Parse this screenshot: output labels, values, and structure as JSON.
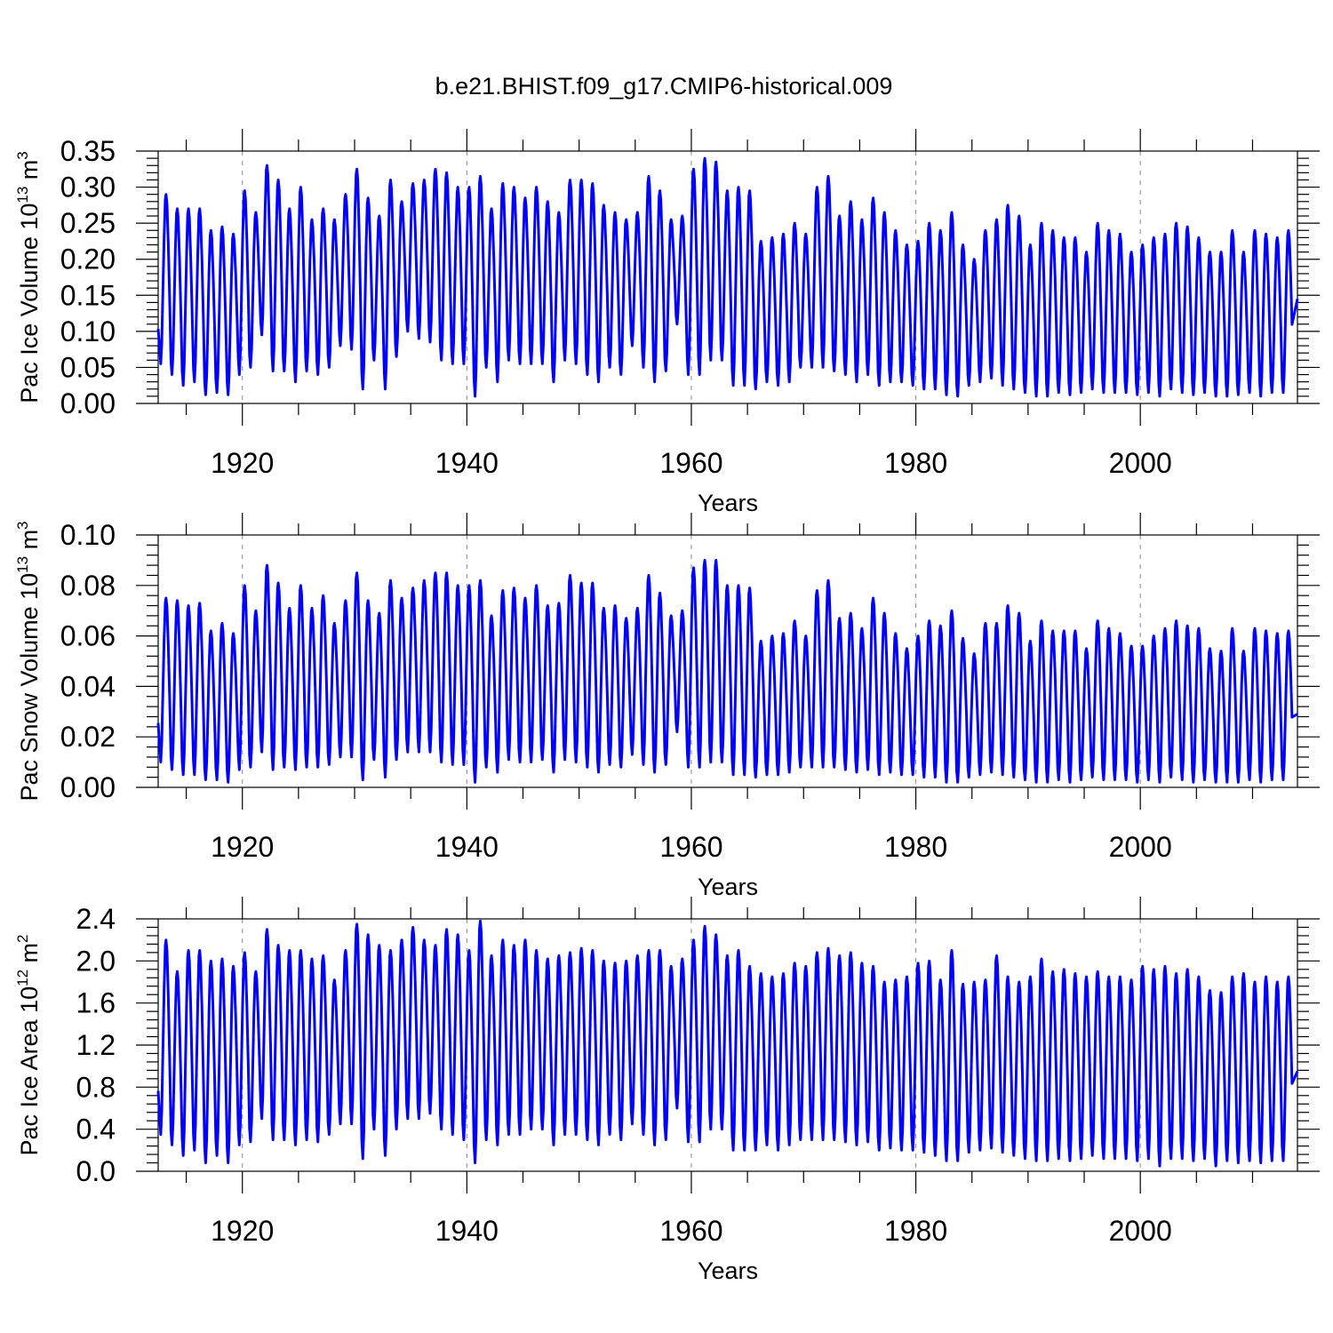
{
  "figure": {
    "title": "b.e21.BHIST.f09_g17.CMIP6-historical.009"
  },
  "colors": {
    "series": "#0000ff",
    "axis": "#000000",
    "grid": "#888888",
    "background": "#ffffff"
  },
  "chart_data": [
    {
      "type": "line",
      "name": "pac-ice-volume",
      "ylabel": {
        "prefix": "Pac Ice Volume 10",
        "exp": "13",
        "unit": " m",
        "unit_exp": "3"
      },
      "xlabel": "Years",
      "xlim": [
        1912.5,
        2014.0
      ],
      "ylim": [
        0.0,
        0.35
      ],
      "yticks": [
        0.0,
        0.05,
        0.1,
        0.15,
        0.2,
        0.25,
        0.3,
        0.35
      ],
      "ytick_labels": [
        "0.00",
        "0.05",
        "0.10",
        "0.15",
        "0.20",
        "0.25",
        "0.30",
        "0.35"
      ],
      "xticks": [
        1920,
        1940,
        1960,
        1980,
        2000
      ],
      "xtick_labels": [
        "1920",
        "1940",
        "1960",
        "1980",
        "2000"
      ],
      "grid": "vertical dashed at major x ticks",
      "start": 1912.5,
      "annual_max": [
        0.29,
        0.27,
        0.27,
        0.27,
        0.24,
        0.245,
        0.235,
        0.295,
        0.265,
        0.33,
        0.31,
        0.27,
        0.3,
        0.255,
        0.27,
        0.255,
        0.29,
        0.325,
        0.285,
        0.26,
        0.31,
        0.28,
        0.305,
        0.31,
        0.325,
        0.32,
        0.3,
        0.3,
        0.315,
        0.27,
        0.305,
        0.3,
        0.285,
        0.3,
        0.28,
        0.265,
        0.31,
        0.31,
        0.305,
        0.275,
        0.265,
        0.255,
        0.265,
        0.315,
        0.295,
        0.255,
        0.26,
        0.325,
        0.34,
        0.335,
        0.295,
        0.3,
        0.295,
        0.225,
        0.23,
        0.235,
        0.25,
        0.235,
        0.3,
        0.315,
        0.26,
        0.28,
        0.255,
        0.285,
        0.265,
        0.24,
        0.22,
        0.225,
        0.25,
        0.24,
        0.265,
        0.22,
        0.2,
        0.24,
        0.255,
        0.275,
        0.26,
        0.22,
        0.25,
        0.24,
        0.23,
        0.23,
        0.21,
        0.25,
        0.24,
        0.235,
        0.21,
        0.22,
        0.23,
        0.235,
        0.25,
        0.245,
        0.23,
        0.21,
        0.21,
        0.24,
        0.21,
        0.24,
        0.235,
        0.23,
        0.24
      ],
      "annual_min": [
        0.055,
        0.04,
        0.025,
        0.03,
        0.012,
        0.015,
        0.012,
        0.04,
        0.05,
        0.095,
        0.045,
        0.045,
        0.03,
        0.045,
        0.04,
        0.05,
        0.08,
        0.075,
        0.02,
        0.06,
        0.02,
        0.065,
        0.1,
        0.09,
        0.085,
        0.06,
        0.055,
        0.055,
        0.01,
        0.05,
        0.03,
        0.06,
        0.055,
        0.055,
        0.055,
        0.03,
        0.06,
        0.055,
        0.04,
        0.03,
        0.05,
        0.04,
        0.08,
        0.05,
        0.03,
        0.045,
        0.11,
        0.04,
        0.04,
        0.06,
        0.06,
        0.025,
        0.025,
        0.02,
        0.03,
        0.025,
        0.03,
        0.05,
        0.05,
        0.05,
        0.045,
        0.04,
        0.03,
        0.04,
        0.025,
        0.03,
        0.03,
        0.025,
        0.02,
        0.02,
        0.012,
        0.01,
        0.025,
        0.03,
        0.035,
        0.025,
        0.02,
        0.015,
        0.01,
        0.01,
        0.015,
        0.012,
        0.015,
        0.02,
        0.015,
        0.015,
        0.015,
        0.012,
        0.015,
        0.01,
        0.02,
        0.015,
        0.012,
        0.015,
        0.01,
        0.01,
        0.012,
        0.015,
        0.01,
        0.015,
        0.015
      ],
      "end_value": 0.145
    },
    {
      "type": "line",
      "name": "pac-snow-volume",
      "ylabel": {
        "prefix": "Pac Snow Volume 10",
        "exp": "13",
        "unit": " m",
        "unit_exp": "3"
      },
      "xlabel": "Years",
      "xlim": [
        1912.5,
        2014.0
      ],
      "ylim": [
        0.0,
        0.1
      ],
      "yticks": [
        0.0,
        0.02,
        0.04,
        0.06,
        0.08,
        0.1
      ],
      "ytick_labels": [
        "0.00",
        "0.02",
        "0.04",
        "0.06",
        "0.08",
        "0.10"
      ],
      "xticks": [
        1920,
        1940,
        1960,
        1980,
        2000
      ],
      "xtick_labels": [
        "1920",
        "1940",
        "1960",
        "1980",
        "2000"
      ],
      "grid": "vertical dashed at major x ticks",
      "start": 1912.5,
      "annual_max": [
        0.075,
        0.074,
        0.072,
        0.073,
        0.062,
        0.065,
        0.061,
        0.08,
        0.07,
        0.088,
        0.081,
        0.071,
        0.08,
        0.071,
        0.076,
        0.065,
        0.074,
        0.085,
        0.074,
        0.069,
        0.082,
        0.075,
        0.079,
        0.082,
        0.085,
        0.085,
        0.08,
        0.08,
        0.082,
        0.068,
        0.078,
        0.079,
        0.075,
        0.08,
        0.072,
        0.073,
        0.084,
        0.081,
        0.081,
        0.071,
        0.072,
        0.067,
        0.071,
        0.084,
        0.077,
        0.068,
        0.07,
        0.087,
        0.09,
        0.09,
        0.08,
        0.08,
        0.079,
        0.058,
        0.06,
        0.061,
        0.066,
        0.06,
        0.078,
        0.082,
        0.067,
        0.069,
        0.063,
        0.075,
        0.069,
        0.061,
        0.055,
        0.06,
        0.066,
        0.064,
        0.07,
        0.059,
        0.053,
        0.065,
        0.065,
        0.072,
        0.069,
        0.058,
        0.066,
        0.062,
        0.062,
        0.062,
        0.055,
        0.066,
        0.063,
        0.061,
        0.056,
        0.056,
        0.06,
        0.063,
        0.066,
        0.064,
        0.063,
        0.055,
        0.054,
        0.063,
        0.054,
        0.063,
        0.062,
        0.061,
        0.062
      ],
      "annual_min": [
        0.01,
        0.007,
        0.005,
        0.005,
        0.003,
        0.003,
        0.002,
        0.007,
        0.008,
        0.014,
        0.007,
        0.008,
        0.007,
        0.008,
        0.008,
        0.009,
        0.012,
        0.012,
        0.003,
        0.011,
        0.004,
        0.011,
        0.014,
        0.014,
        0.014,
        0.01,
        0.009,
        0.009,
        0.002,
        0.008,
        0.006,
        0.011,
        0.01,
        0.01,
        0.011,
        0.006,
        0.011,
        0.01,
        0.008,
        0.006,
        0.009,
        0.008,
        0.013,
        0.009,
        0.006,
        0.009,
        0.022,
        0.008,
        0.008,
        0.01,
        0.01,
        0.005,
        0.005,
        0.004,
        0.005,
        0.005,
        0.006,
        0.008,
        0.008,
        0.008,
        0.008,
        0.007,
        0.006,
        0.007,
        0.005,
        0.006,
        0.005,
        0.005,
        0.004,
        0.004,
        0.002,
        0.002,
        0.004,
        0.005,
        0.006,
        0.005,
        0.004,
        0.003,
        0.002,
        0.002,
        0.003,
        0.002,
        0.003,
        0.004,
        0.003,
        0.003,
        0.003,
        0.002,
        0.003,
        0.002,
        0.004,
        0.003,
        0.002,
        0.003,
        0.002,
        0.002,
        0.002,
        0.003,
        0.002,
        0.003,
        0.003
      ],
      "end_value": 0.029
    },
    {
      "type": "line",
      "name": "pac-ice-area",
      "ylabel": {
        "prefix": "Pac Ice Area 10",
        "exp": "12",
        "unit": " m",
        "unit_exp": "2"
      },
      "xlabel": "Years",
      "xlim": [
        1912.5,
        2014.0
      ],
      "ylim": [
        0.0,
        2.4
      ],
      "yticks": [
        0.0,
        0.4,
        0.8,
        1.2,
        1.6,
        2.0,
        2.4
      ],
      "ytick_labels": [
        "0.0",
        "0.4",
        "0.8",
        "1.2",
        "1.6",
        "2.0",
        "2.4"
      ],
      "xticks": [
        1920,
        1940,
        1960,
        1980,
        2000
      ],
      "xtick_labels": [
        "1920",
        "1940",
        "1960",
        "1980",
        "2000"
      ],
      "grid": "vertical dashed at major x ticks",
      "start": 1912.5,
      "annual_max": [
        2.2,
        1.9,
        2.1,
        2.1,
        2.0,
        2.02,
        1.95,
        2.08,
        1.9,
        2.3,
        2.15,
        2.1,
        2.1,
        2.02,
        2.05,
        1.82,
        2.1,
        2.35,
        2.25,
        2.15,
        2.1,
        2.2,
        2.32,
        2.2,
        2.15,
        2.3,
        2.25,
        2.1,
        2.38,
        2.05,
        2.2,
        2.15,
        2.2,
        2.1,
        2.02,
        2.05,
        2.08,
        2.12,
        2.1,
        2.0,
        1.98,
        2.0,
        2.05,
        2.1,
        2.1,
        1.95,
        2.02,
        2.2,
        2.33,
        2.25,
        2.05,
        2.1,
        1.95,
        1.88,
        1.85,
        1.88,
        1.98,
        1.95,
        2.08,
        2.12,
        2.05,
        2.08,
        1.98,
        1.95,
        1.8,
        1.82,
        1.85,
        1.98,
        2.0,
        1.82,
        2.1,
        1.78,
        1.8,
        1.82,
        2.05,
        1.85,
        1.8,
        1.85,
        2.02,
        1.9,
        1.92,
        1.88,
        1.85,
        1.9,
        1.85,
        1.85,
        1.82,
        1.95,
        1.92,
        1.95,
        1.88,
        1.92,
        1.85,
        1.72,
        1.7,
        1.85,
        1.88,
        1.8,
        1.85,
        1.8,
        1.85
      ],
      "annual_min": [
        0.35,
        0.25,
        0.15,
        0.2,
        0.08,
        0.15,
        0.08,
        0.25,
        0.28,
        0.5,
        0.3,
        0.3,
        0.25,
        0.3,
        0.28,
        0.35,
        0.45,
        0.45,
        0.12,
        0.4,
        0.15,
        0.4,
        0.5,
        0.5,
        0.55,
        0.4,
        0.35,
        0.3,
        0.08,
        0.3,
        0.25,
        0.35,
        0.35,
        0.4,
        0.4,
        0.25,
        0.35,
        0.35,
        0.3,
        0.25,
        0.35,
        0.3,
        0.45,
        0.35,
        0.25,
        0.3,
        0.6,
        0.28,
        0.28,
        0.4,
        0.4,
        0.2,
        0.2,
        0.2,
        0.25,
        0.2,
        0.25,
        0.3,
        0.3,
        0.3,
        0.3,
        0.28,
        0.25,
        0.28,
        0.2,
        0.22,
        0.2,
        0.2,
        0.18,
        0.15,
        0.1,
        0.1,
        0.18,
        0.2,
        0.22,
        0.18,
        0.15,
        0.12,
        0.1,
        0.1,
        0.12,
        0.1,
        0.12,
        0.15,
        0.12,
        0.12,
        0.12,
        0.1,
        0.12,
        0.05,
        0.12,
        0.12,
        0.1,
        0.12,
        0.05,
        0.1,
        0.08,
        0.1,
        0.08,
        0.1,
        0.1
      ],
      "end_value": 0.95
    }
  ]
}
